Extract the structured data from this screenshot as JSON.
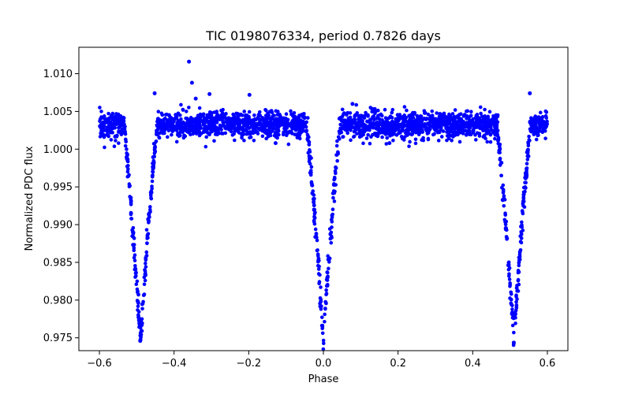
{
  "chart_data": {
    "type": "scatter",
    "title": "TIC 0198076334, period 0.7826 days",
    "xlabel": "Phase",
    "ylabel": "Normalized PDC flux",
    "xlim": [
      -0.655,
      0.655
    ],
    "ylim": [
      0.9733,
      1.0135
    ],
    "x_ticks": [
      -0.6,
      -0.4,
      -0.2,
      0.0,
      0.2,
      0.4,
      0.6
    ],
    "x_tick_labels": [
      "−0.6",
      "−0.4",
      "−0.2",
      "0.0",
      "0.2",
      "0.4",
      "0.6"
    ],
    "y_ticks": [
      0.975,
      0.98,
      0.985,
      0.99,
      0.995,
      1.0,
      1.005,
      1.01
    ],
    "y_tick_labels": [
      "0.975",
      "0.980",
      "0.985",
      "0.990",
      "0.995",
      "1.000",
      "1.005",
      "1.010"
    ],
    "grid": false,
    "marker_color": "#0000ff",
    "phase_range": [
      -0.6,
      0.6
    ],
    "out_of_eclipse_flux": 1.0032,
    "eclipses": [
      {
        "center": -0.49,
        "min_flux": 0.9748,
        "half_width": 0.045
      },
      {
        "center": 0.0,
        "min_flux": 0.9752,
        "half_width": 0.045
      },
      {
        "center": 0.51,
        "min_flux": 0.9748,
        "half_width": 0.045
      }
    ],
    "outliers": [
      {
        "x": -0.36,
        "y": 1.0116
      },
      {
        "x": -0.352,
        "y": 1.0088
      },
      {
        "x": -0.342,
        "y": 1.0067
      },
      {
        "x": -0.452,
        "y": 1.0074
      },
      {
        "x": -0.305,
        "y": 1.0073
      },
      {
        "x": -0.198,
        "y": 1.0072
      },
      {
        "x": 0.553,
        "y": 1.0074
      },
      {
        "x": 0.078,
        "y": 1.006
      },
      {
        "x": 0.177,
        "y": 1.0008
      },
      {
        "x": -0.128,
        "y": 1.0008
      }
    ]
  }
}
